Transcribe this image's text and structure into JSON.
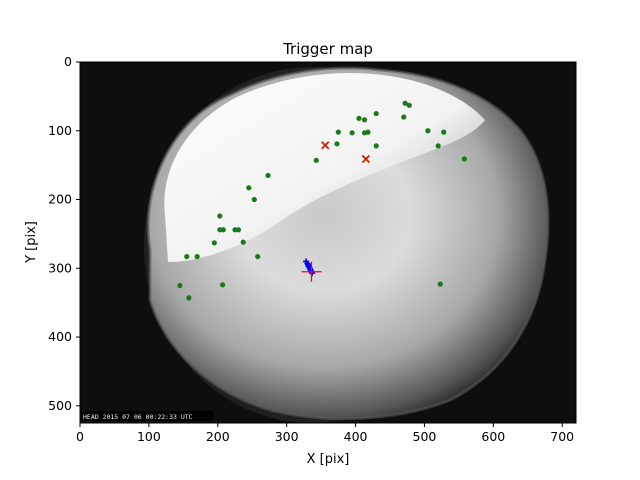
{
  "chart_data": {
    "type": "scatter",
    "title": "Trigger map",
    "xlabel": "X [pix]",
    "ylabel": "Y [pix]",
    "xlim": [
      0,
      720
    ],
    "ylim": [
      525,
      0
    ],
    "y_inverted": true,
    "xticks": [
      "0",
      "100",
      "200",
      "300",
      "400",
      "500",
      "600",
      "700"
    ],
    "yticks": [
      "0",
      "100",
      "200",
      "300",
      "400",
      "500"
    ],
    "grid": false,
    "background": "grayscale all-sky camera image (fisheye)",
    "image_timestamp": "HEAD 2015 07 06 00:22:33 UTC",
    "series": [
      {
        "marker": "dot",
        "color": "#1a7a1a",
        "points": [
          [
            145,
            325
          ],
          [
            155,
            283
          ],
          [
            158,
            343
          ],
          [
            170,
            283
          ],
          [
            195,
            263
          ],
          [
            203,
            224
          ],
          [
            203,
            244
          ],
          [
            208,
            244
          ],
          [
            207,
            324
          ],
          [
            225,
            244
          ],
          [
            230,
            244
          ],
          [
            237,
            262
          ],
          [
            245,
            183
          ],
          [
            253,
            200
          ],
          [
            258,
            283
          ],
          [
            273,
            165
          ],
          [
            343,
            143
          ],
          [
            373,
            119
          ],
          [
            375,
            102
          ],
          [
            395,
            103
          ],
          [
            405,
            82
          ],
          [
            413,
            84
          ],
          [
            413,
            103
          ],
          [
            418,
            102
          ],
          [
            430,
            122
          ],
          [
            430,
            75
          ],
          [
            470,
            80
          ],
          [
            472,
            60
          ],
          [
            478,
            63
          ],
          [
            505,
            100
          ],
          [
            520,
            122
          ],
          [
            523,
            323
          ],
          [
            528,
            102
          ],
          [
            558,
            141
          ]
        ]
      },
      {
        "marker": "x",
        "color": "#cc2200",
        "points": [
          [
            356,
            121
          ],
          [
            415,
            141
          ]
        ]
      },
      {
        "marker": "plus",
        "color": "#0000ff",
        "points": [
          [
            328,
            290
          ],
          [
            330,
            293
          ],
          [
            331,
            295
          ],
          [
            332,
            297
          ],
          [
            333,
            299
          ],
          [
            334,
            301
          ],
          [
            335,
            303
          ],
          [
            336,
            305
          ],
          [
            337,
            307
          ]
        ]
      },
      {
        "marker": "plus-large",
        "color": "#ff0000",
        "points": [
          [
            336,
            305
          ]
        ]
      }
    ]
  },
  "colors": {
    "green_dot": "#1a7a1a",
    "red_x": "#cc2200",
    "blue_plus": "#0000ff",
    "red_plus": "#ff0000"
  }
}
